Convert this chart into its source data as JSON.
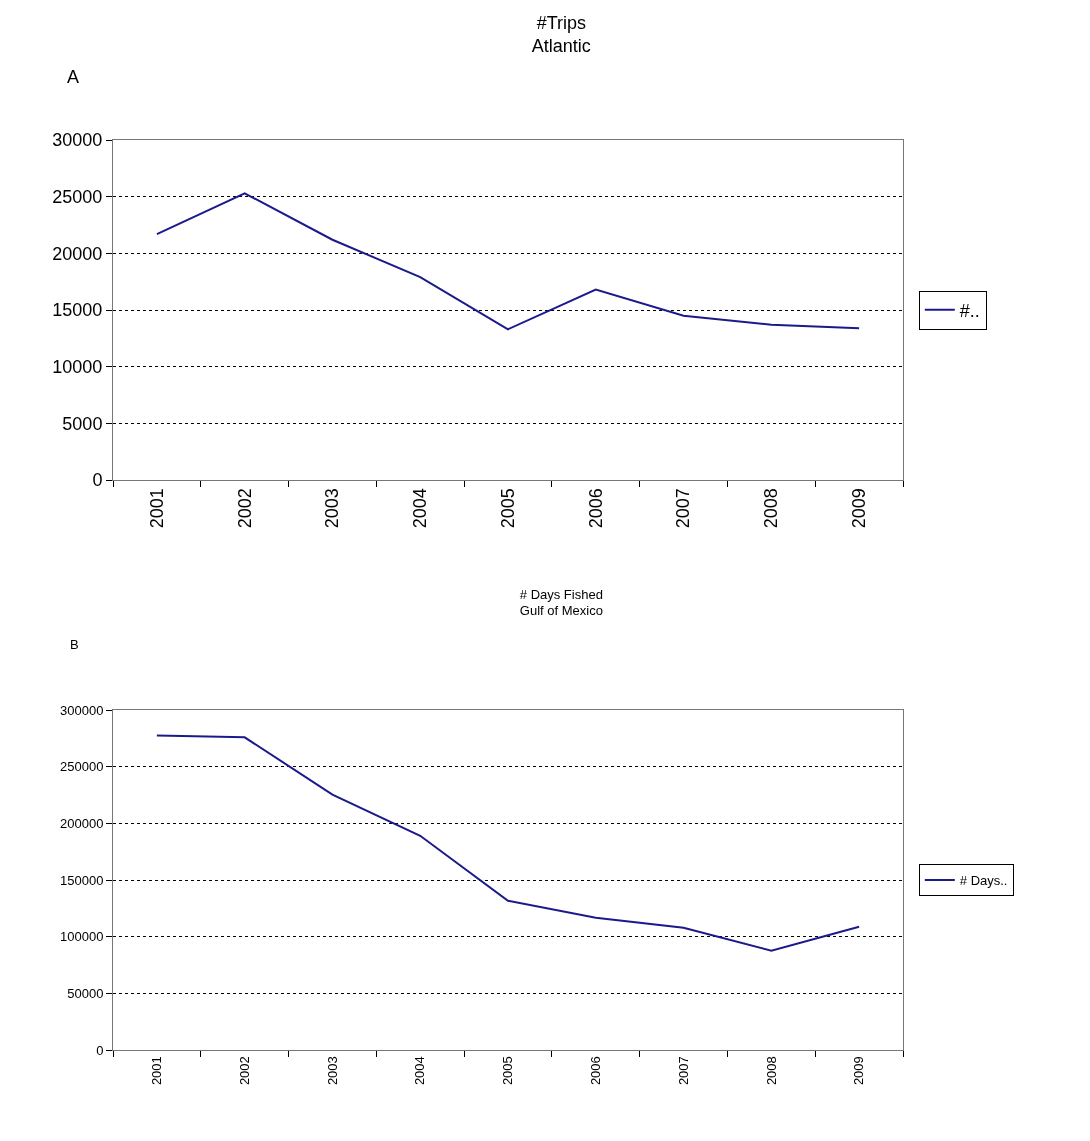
{
  "chart_data": [
    {
      "type": "line",
      "title": "#Trips\nAtlantic",
      "annotations": [
        "A"
      ],
      "categories": [
        "2001",
        "2002",
        "2003",
        "2004",
        "2005",
        "2006",
        "2007",
        "2008",
        "2009"
      ],
      "series": [
        {
          "name": "#..",
          "color": "#1a1a8c",
          "values": [
            21700,
            25300,
            21200,
            17900,
            13300,
            16800,
            14500,
            13700,
            13400
          ]
        }
      ],
      "ylim": [
        0,
        30000
      ],
      "yticks": [
        0,
        5000,
        10000,
        15000,
        20000,
        25000,
        30000
      ],
      "grid": "y",
      "legend": "right",
      "marker": "none",
      "line_style": "solid"
    },
    {
      "type": "line",
      "title": "# Days Fished\nGulf of Mexico",
      "annotations": [
        "B"
      ],
      "categories": [
        "2001",
        "2002",
        "2003",
        "2004",
        "2005",
        "2006",
        "2007",
        "2008",
        "2009"
      ],
      "series": [
        {
          "name": "# Days..",
          "color": "#1a1a8c",
          "values": [
            277600,
            275900,
            225400,
            189000,
            131600,
            116700,
            107900,
            87700,
            108800
          ]
        }
      ],
      "ylim": [
        0,
        300000
      ],
      "yticks": [
        0,
        50000,
        100000,
        150000,
        200000,
        250000,
        300000
      ],
      "grid": "y",
      "legend": "right",
      "marker": "none",
      "line_style": "solid"
    }
  ]
}
